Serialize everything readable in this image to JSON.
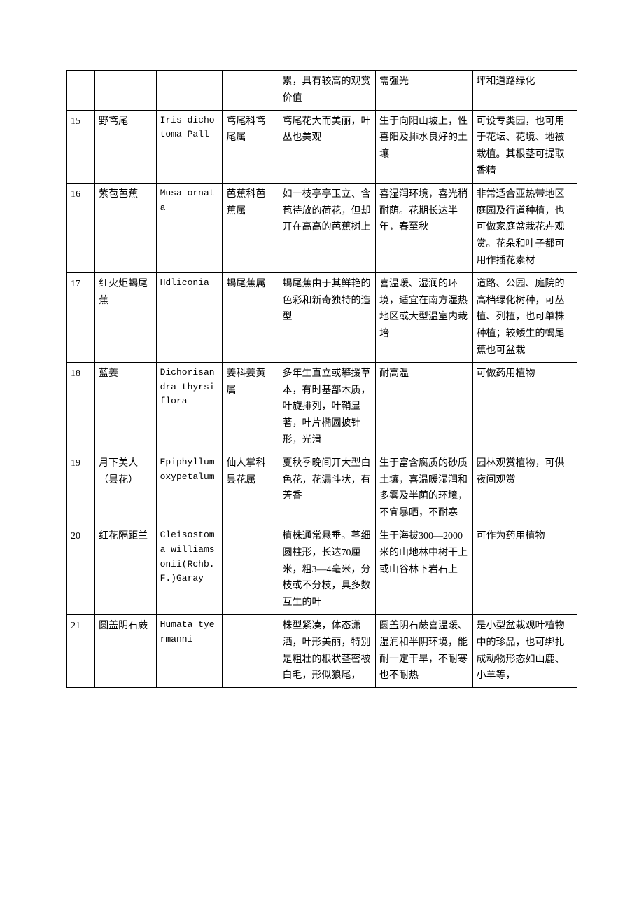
{
  "rows": [
    {
      "n": "",
      "cn": "",
      "latin": "",
      "fam": "",
      "desc": "累，具有较高的观赏价值",
      "hab": "需强光",
      "use": "坪和道路绿化"
    },
    {
      "n": "15",
      "cn": "野鸢尾",
      "latin": "Iris dichotoma Pall",
      "fam": "鸢尾科鸢尾属",
      "desc": "鸢尾花大而美丽，叶丛也美观",
      "hab": "生于向阳山坡上，性喜阳及排水良好的土壤",
      "use": "可设专类园，也可用于花坛、花境、地被栽植。其根茎可提取香精"
    },
    {
      "n": "16",
      "cn": "紫苞芭蕉",
      "latin": "Musa ornata",
      "fam": "芭蕉科芭蕉属",
      "desc": "如一枝亭亭玉立、含苞待放的荷花，但却开在高高的芭蕉树上",
      "hab": "喜湿润环境，喜光稍耐荫。花期长达半年，春至秋",
      "use": "非常适合亚热带地区庭园及行道种植，也可做家庭盆栽花卉观赏。花朵和叶子都可用作插花素材"
    },
    {
      "n": "17",
      "cn": "红火炬蝎尾蕉",
      "latin": "Hdliconia",
      "fam": "蝎尾蕉属",
      "desc": "蝎尾蕉由于其鲜艳的色彩和新奇独特的造型",
      "hab": "喜温暖、湿润的环境，适宜在南方湿热地区或大型温室内栽培",
      "use": "道路、公园、庭院的高档绿化树种，可丛植、列植，也可单株种植；较矮生的蝎尾蕉也可盆栽"
    },
    {
      "n": "18",
      "cn": "蓝姜",
      "latin": "Dichorisandra thyrsiflora",
      "fam": "姜科姜黄属",
      "desc": "多年生直立或攀援草本，有时基部木质，叶旋排列，叶鞘显著，叶片椭圆披针形，光滑",
      "hab": "耐高温",
      "use": "可做药用植物"
    },
    {
      "n": "19",
      "cn": "月下美人（昙花）",
      "latin": "Epiphyllum oxypetalum",
      "fam": "仙人掌科昙花属",
      "desc": "夏秋季晚间开大型白色花，花漏斗状，有芳香",
      "hab": "生于富含腐质的砂质土壤，喜温暖湿润和多雾及半荫的环境，不宜暴晒，不耐寒",
      "use": "园林观赏植物，可供夜间观赏"
    },
    {
      "n": "20",
      "cn": "红花隔距兰",
      "latin": "Cleisostoma williamsonii(Rchb.F.)Garay",
      "fam": "",
      "desc": "植株通常悬垂。茎细圆柱形，长达70厘米，粗3—4毫米，分枝或不分枝，具多数互生的叶",
      "hab": "生于海拔300—2000米的山地林中树干上或山谷林下岩石上",
      "use": "可作为药用植物"
    },
    {
      "n": "21",
      "cn": "圆盖阴石蕨",
      "latin": "Humata tyermanni",
      "fam": "",
      "desc": "株型紧凑，体态潇洒，叶形美丽，特别是粗壮的根状茎密被白毛，形似狼尾，",
      "hab": "圆盖阴石蕨喜温暖、湿润和半阴环境，能耐一定干旱，不耐寒也不耐热",
      "use": "是小型盆栽观叶植物中的珍品，也可绑扎成动物形态如山鹿、小羊等，"
    }
  ]
}
